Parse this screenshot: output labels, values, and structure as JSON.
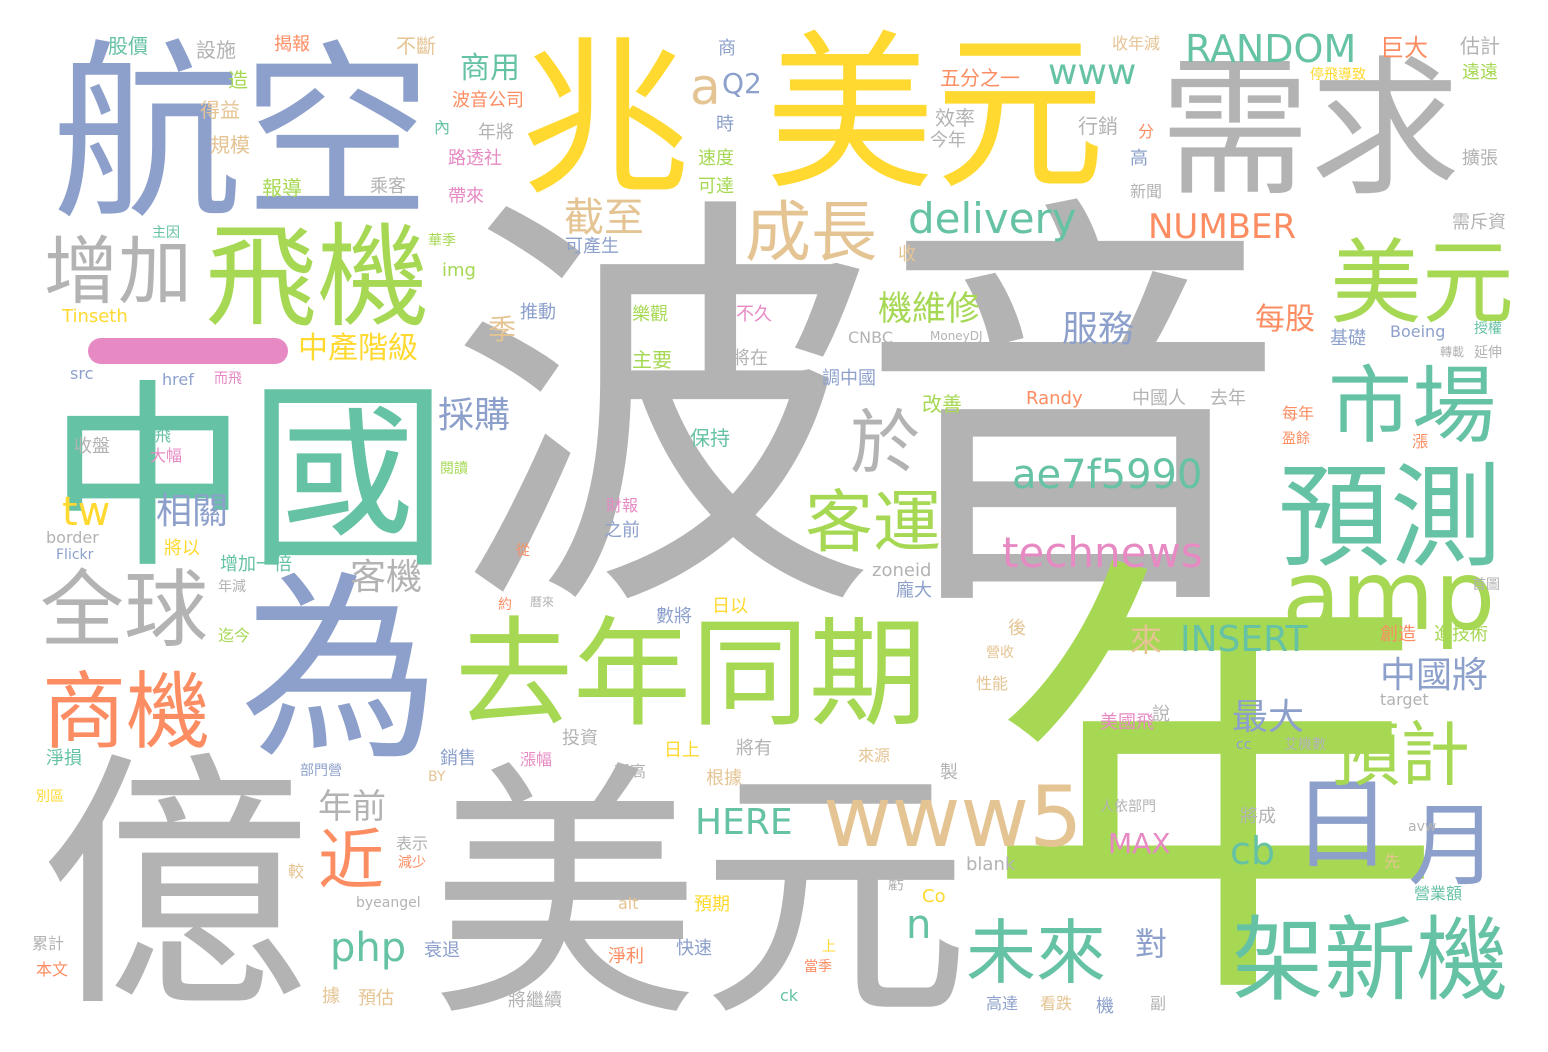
{
  "colors": {
    "background": "#ffffff",
    "gray": "#b3b3b3",
    "blue": "#8da0cb",
    "green": "#a6d854",
    "yellow": "#ffd92f",
    "teal": "#66c2a5",
    "orange": "#fc8d62",
    "tan": "#e5c494",
    "pink": "#e78ac3"
  },
  "words": {
    "boyin": "波音",
    "nian": "年",
    "yi": "億",
    "meiyuan_big": "美元",
    "zhongguo": "中國",
    "wei": "為",
    "hangkong": "航空",
    "zhao": "兆",
    "meiyuan_top": "美元",
    "xuqiu": "需求",
    "feiji": "飛機",
    "qunian_tongqi": "去年同期",
    "jiaxinji": "架新機",
    "yuce": "預測",
    "shichang": "市場",
    "meiyuan_right": "美元",
    "amp": "amp",
    "ri": "日",
    "yue": "月",
    "weilai": "未來",
    "yuji": "預計",
    "www5": "www5",
    "shangji": "商機",
    "quanqiu": "全球",
    "zengjia": "增加",
    "chengzhang": "成長",
    "keyun": "客運",
    "yu": "於",
    "delivery": "delivery",
    "ae7f": "ae7f5990",
    "technews": "technews",
    "random": "RANDOM",
    "number": "NUMBER",
    "insert": "INSERT",
    "here": "HERE",
    "www": "www",
    "a": "a",
    "jin": "近",
    "php": "php",
    "tw": "tw",
    "cb": "cb",
    "n": "n",
    "max": "MAX",
    "jiweixiu": "機維修",
    "fuwu": "服務",
    "zhongchanjieji": "中產階級",
    "caigou": "採購",
    "xiangguan": "相關",
    "keji": "客機",
    "zhongguojiang": "中國將",
    "zuida": "最大",
    "nianqian": "年前",
    "jiezhi": "截至",
    "shangyong": "商用",
    "meigu": "每股",
    "ji_pinyin": "季",
    "lai": "來",
    "jia": "架",
    "dui": "對",
    "q2": "Q2",
    "small": [
      "股價",
      "設施",
      "揭報",
      "不斷",
      "商",
      "收年減",
      "巨大",
      "估計",
      "造",
      "得益",
      "規模",
      "報導",
      "乘客",
      "帶來",
      "路透社",
      "波音公司",
      "內",
      "年將",
      "時",
      "五分之一",
      "效率",
      "今年",
      "行銷",
      "分",
      "高",
      "新聞",
      "速度",
      "可達",
      "停飛導致",
      "遠遠",
      "擴張",
      "主因",
      "華季",
      "img",
      "可產生",
      "Tinseth",
      "推動",
      "樂觀",
      "不久",
      "主要",
      "將在",
      "src",
      "href",
      "而飛",
      "收盤",
      "飛",
      "大幅",
      "閱讀",
      "調中國",
      "改善",
      "保持",
      "Randy",
      "中國人",
      "去年",
      "CNBC",
      "MoneyDJ",
      "基礎",
      "Boeing",
      "每年",
      "盈餘",
      "授權",
      "轉載",
      "延伸",
      "漲",
      "需斥資",
      "收",
      "財報",
      "之前",
      "border",
      "Flickr",
      "將以",
      "從",
      "增加一倍",
      "年減",
      "迄今",
      "約",
      "曆來",
      "數將",
      "日以",
      "zoneid",
      "龐大",
      "後",
      "營收",
      "性能",
      "創造",
      "進技術",
      "首圖",
      "target",
      "說",
      "美國飛",
      "淨損",
      "部門營",
      "別區",
      "投資",
      "日上",
      "將有",
      "新高",
      "根據",
      "來源",
      "漲幅",
      "銷售",
      "表示",
      "減少",
      "較",
      "blank",
      "人依部門",
      "將成",
      "cc",
      "艾機數",
      "製",
      "avw",
      "先",
      "營業額",
      "Co",
      "預期",
      "alt",
      "byeangel",
      "衰退",
      "淨利",
      "快速",
      "上",
      "當季",
      "累計",
      "本文",
      "據",
      "預估",
      "將繼續",
      "ck",
      "高達",
      "看跌",
      "機",
      "副",
      "BY",
      "虧"
    ]
  }
}
